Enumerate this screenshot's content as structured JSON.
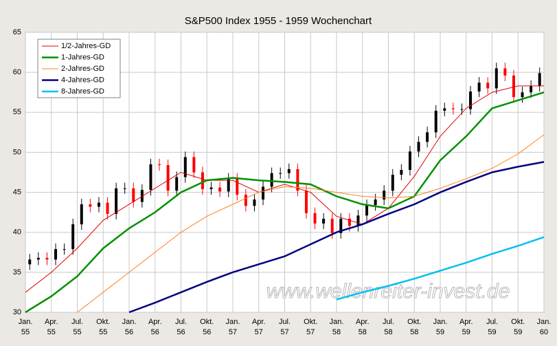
{
  "chart_data": {
    "type": "candlestick",
    "title": "S&P500 Index 1955 - 1959 Wochenchart",
    "annotation": "www.wellenreiter-invest.de",
    "ylim": [
      30,
      65
    ],
    "yticks": [
      30,
      35,
      40,
      45,
      50,
      55,
      60,
      65
    ],
    "grid": true,
    "legend": "upper left",
    "xticks": [
      {
        "month": "Jan.",
        "year": "55"
      },
      {
        "month": "Apr.",
        "year": "55"
      },
      {
        "month": "Jul.",
        "year": "55"
      },
      {
        "month": "Okt.",
        "year": "55"
      },
      {
        "month": "Jan.",
        "year": "56"
      },
      {
        "month": "Apr.",
        "year": "56"
      },
      {
        "month": "Jul.",
        "year": "56"
      },
      {
        "month": "Okt.",
        "year": "56"
      },
      {
        "month": "Jan.",
        "year": "57"
      },
      {
        "month": "Apr.",
        "year": "57"
      },
      {
        "month": "Jul.",
        "year": "57"
      },
      {
        "month": "Okt.",
        "year": "57"
      },
      {
        "month": "Jan.",
        "year": "58"
      },
      {
        "month": "Apr.",
        "year": "58"
      },
      {
        "month": "Jul.",
        "year": "58"
      },
      {
        "month": "Okt.",
        "year": "58"
      },
      {
        "month": "Jan.",
        "year": "59"
      },
      {
        "month": "Apr.",
        "year": "59"
      },
      {
        "month": "Jul.",
        "year": "59"
      },
      {
        "month": "Okt.",
        "year": "59"
      },
      {
        "month": "Jan.",
        "year": "60"
      }
    ],
    "up_color": "#000000",
    "down_color": "#ff0000",
    "open": [
      36.0,
      36.6,
      36.8,
      36.6,
      37.9,
      37.9,
      41.0,
      43.5,
      43.2,
      43.7,
      42.3,
      45.5,
      45.5,
      43.8,
      45.3,
      48.5,
      48.4,
      45.2,
      46.9,
      49.4,
      47.5,
      45.4,
      45.6,
      45.1,
      46.7,
      44.7,
      43.3,
      44.1,
      45.7,
      47.4,
      47.4,
      47.9,
      45.2,
      42.4,
      41.1,
      41.7,
      39.9,
      41.7,
      40.8,
      42.1,
      43.4,
      44.1,
      45.2,
      47.2,
      47.8,
      50.1,
      51.3,
      52.5,
      55.2,
      55.5,
      55.4,
      55.4,
      57.6,
      58.7,
      58.0,
      60.5,
      59.6,
      56.9,
      57.5,
      58.3
    ],
    "high": [
      37.3,
      37.5,
      37.5,
      38.6,
      38.6,
      41.7,
      44.2,
      44.2,
      44.4,
      44.4,
      46.2,
      46.2,
      46.2,
      46.0,
      49.2,
      49.2,
      49.1,
      47.6,
      50.1,
      50.1,
      48.2,
      46.3,
      46.3,
      47.4,
      47.4,
      45.4,
      44.8,
      46.4,
      48.1,
      48.1,
      48.6,
      48.6,
      45.9,
      43.1,
      42.4,
      42.4,
      42.4,
      42.4,
      42.8,
      44.1,
      44.8,
      45.9,
      47.9,
      48.5,
      50.8,
      52.0,
      53.2,
      55.9,
      56.2,
      56.2,
      56.1,
      58.3,
      59.4,
      59.4,
      61.2,
      61.2,
      60.3,
      58.2,
      59.0,
      60.6
    ],
    "low": [
      35.3,
      35.9,
      35.9,
      35.9,
      37.2,
      37.2,
      40.3,
      42.5,
      42.5,
      41.6,
      41.6,
      44.8,
      43.1,
      43.1,
      44.6,
      47.7,
      44.5,
      44.5,
      46.2,
      46.8,
      44.7,
      44.7,
      44.4,
      44.4,
      44.0,
      42.6,
      42.6,
      43.4,
      45.0,
      46.7,
      46.7,
      44.5,
      41.7,
      40.4,
      40.4,
      39.2,
      39.2,
      40.1,
      40.1,
      41.4,
      42.7,
      43.4,
      44.5,
      46.5,
      47.1,
      49.4,
      50.6,
      51.8,
      54.5,
      54.7,
      54.7,
      54.7,
      56.9,
      57.3,
      57.3,
      58.9,
      56.2,
      56.2,
      56.8,
      57.6
    ],
    "close": [
      36.6,
      36.8,
      36.6,
      37.9,
      37.9,
      41.0,
      43.5,
      43.2,
      43.7,
      42.3,
      45.5,
      45.5,
      43.8,
      45.3,
      48.5,
      48.4,
      45.2,
      46.9,
      49.4,
      47.5,
      45.4,
      45.6,
      45.1,
      46.7,
      44.7,
      43.3,
      44.1,
      45.7,
      47.4,
      47.4,
      47.9,
      45.2,
      42.4,
      41.1,
      41.7,
      39.9,
      41.7,
      40.8,
      42.1,
      43.4,
      44.1,
      45.2,
      47.2,
      47.8,
      50.1,
      51.3,
      52.5,
      55.2,
      55.5,
      55.4,
      55.4,
      57.6,
      58.7,
      58.0,
      60.5,
      59.6,
      56.9,
      57.5,
      58.3,
      59.9
    ],
    "series": [
      {
        "name": "1/2-Jahres-GD",
        "color": "#e00000",
        "width": 1,
        "values": [
          32.5,
          35,
          38,
          41.5,
          43.5,
          45.5,
          47.5,
          46.5,
          46.5,
          45,
          46,
          45,
          42,
          41,
          43,
          47,
          52,
          55.5,
          57.5,
          58.3,
          58.3
        ]
      },
      {
        "name": "1-Jahres-GD",
        "color": "#009000",
        "width": 2.5,
        "values": [
          30,
          32,
          34.5,
          38,
          40.5,
          42.5,
          45,
          46.5,
          46.8,
          46.5,
          46.3,
          46,
          44.5,
          43.5,
          43,
          44.5,
          49,
          52,
          55.5,
          56.5,
          57.5
        ]
      },
      {
        "name": "2-Jahres-GD",
        "color": "#ff8020",
        "width": 1,
        "values": [
          null,
          null,
          30,
          32.5,
          35,
          37.5,
          40,
          42,
          43.5,
          45,
          45.7,
          45.5,
          45,
          44.5,
          44.3,
          44.5,
          45.5,
          46.7,
          48,
          49.8,
          52.2
        ]
      },
      {
        "name": "4-Jahres-GD",
        "color": "#000080",
        "width": 2.5,
        "values": [
          null,
          null,
          null,
          null,
          30,
          31.2,
          32.5,
          33.8,
          35,
          36,
          37,
          38.5,
          40,
          41,
          42.3,
          43.5,
          45,
          46.3,
          47.5,
          48.2,
          48.8
        ]
      },
      {
        "name": "8-Jahres-GD",
        "color": "#00c0f0",
        "width": 2.5,
        "values": [
          null,
          null,
          null,
          null,
          null,
          null,
          null,
          null,
          null,
          null,
          null,
          null,
          31.6,
          32.5,
          33.3,
          34.2,
          35.2,
          36.2,
          37.3,
          38.3,
          39.4
        ]
      }
    ]
  }
}
